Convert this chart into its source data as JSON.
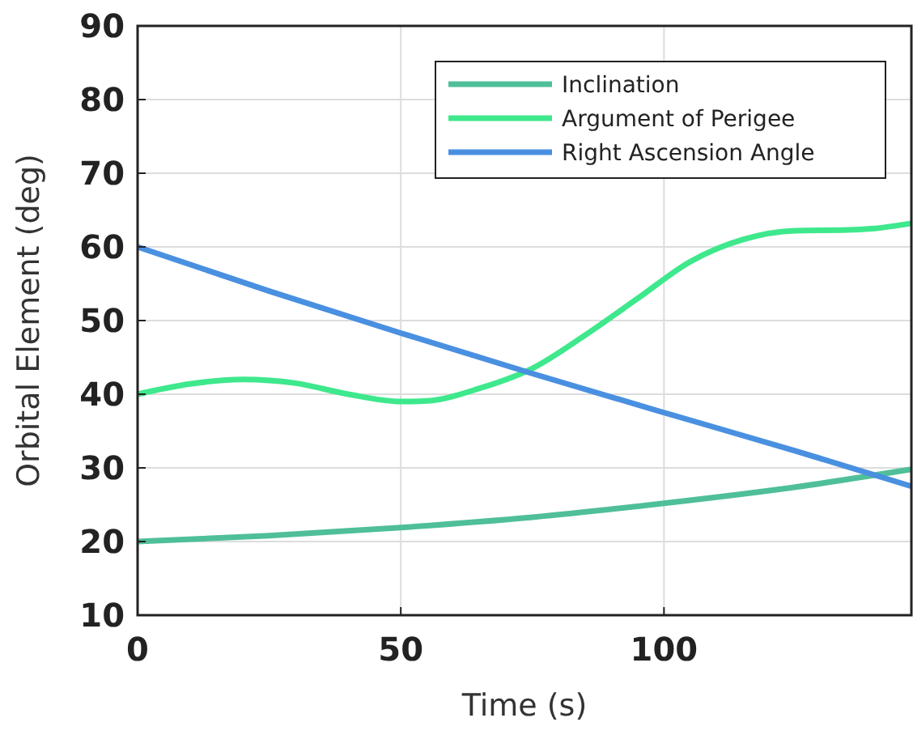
{
  "chart_data": {
    "type": "line",
    "xlabel": "Time (s)",
    "ylabel": "Orbital Element (deg)",
    "xlim": [
      0,
      147
    ],
    "ylim": [
      10,
      90
    ],
    "xticks": [
      0,
      50,
      100
    ],
    "yticks": [
      10,
      20,
      30,
      40,
      50,
      60,
      70,
      80,
      90
    ],
    "grid": true,
    "legend": "top right",
    "line_style": "solid",
    "marker": "none",
    "series": [
      {
        "name": "Inclination",
        "color": "#4fbf99",
        "x": [
          0,
          25,
          50,
          75,
          100,
          125,
          147
        ],
        "values": [
          20,
          20.8,
          21.9,
          23.3,
          25.2,
          27.4,
          29.8
        ]
      },
      {
        "name": "Argument of Perigee",
        "color": "#3ee88c",
        "x": [
          0,
          10,
          20,
          30,
          40,
          50,
          55,
          65,
          75,
          85,
          95,
          105,
          115,
          125,
          135,
          140,
          147
        ],
        "values": [
          40,
          41.4,
          42,
          41.5,
          40,
          39,
          39.1,
          40.8,
          43.5,
          48,
          53,
          58,
          61,
          62.2,
          62.3,
          62.5,
          63.2
        ]
      },
      {
        "name": "Right Ascension Angle",
        "color": "#4a90e0",
        "x": [
          0,
          25,
          50,
          75,
          100,
          125,
          147
        ],
        "values": [
          60,
          54,
          48.3,
          42.8,
          37.5,
          32.3,
          27.5
        ]
      }
    ]
  }
}
